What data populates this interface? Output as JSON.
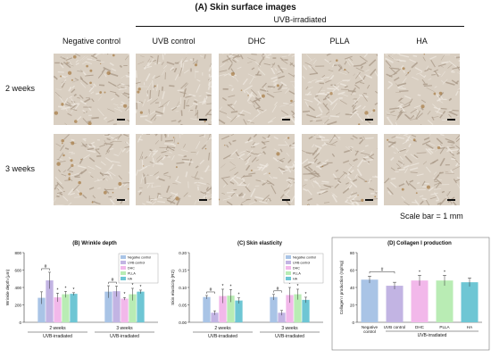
{
  "figure": {
    "title": "(A) Skin surface images",
    "group_header": "UVB-irradiated",
    "columns": [
      "Negative control",
      "UVB control",
      "DHC",
      "PLLA",
      "HA"
    ],
    "rows": [
      "2 weeks",
      "3 weeks"
    ],
    "scale_note": "Scale bar = 1 mm",
    "tile_colors": {
      "base": "#d9cfc2",
      "light": "#efe9e1",
      "dark": "#a89886",
      "brown": "#9c6a2c"
    }
  },
  "chart_data": [
    {
      "type": "bar",
      "title": "(B) Wrinkle depth",
      "ylabel": "Wrinkle depth (μm)",
      "ylim": [
        0,
        800
      ],
      "yticks": [
        0,
        200,
        400,
        600,
        800
      ],
      "groups": [
        "2 weeks",
        "3 weeks"
      ],
      "group_sublabel": "UVB-irradiated",
      "series": [
        {
          "name": "Negative control",
          "color": "#a9c4e6",
          "values": [
            280,
            350
          ],
          "errors": [
            70,
            70
          ]
        },
        {
          "name": "UVB control",
          "color": "#c2b4e3",
          "values": [
            480,
            355
          ],
          "errors": [
            95,
            60
          ]
        },
        {
          "name": "DHC",
          "color": "#f2b8ea",
          "values": [
            285,
            270
          ],
          "errors": [
            50,
            15
          ]
        },
        {
          "name": "PLLA",
          "color": "#b9ecb4",
          "values": [
            320,
            320
          ],
          "errors": [
            35,
            70
          ]
        },
        {
          "name": "HA",
          "color": "#6ec6d4",
          "values": [
            325,
            350
          ],
          "errors": [
            15,
            20
          ]
        }
      ],
      "significance": [
        {
          "group": 0,
          "label": "#"
        },
        {
          "group": 1,
          "label": "#"
        },
        {
          "group": 1,
          "label": "#"
        }
      ]
    },
    {
      "type": "bar",
      "title": "(C) Skin elasticity",
      "ylabel": "Skin elasticity (R2)",
      "ylim": [
        0,
        0.2
      ],
      "yticks": [
        0,
        0.05,
        0.1,
        0.15,
        0.2
      ],
      "yticklabels": [
        "0.00",
        "0.05",
        "0.10",
        "0.15",
        "0.20"
      ],
      "groups": [
        "2 weeks",
        "3 weeks"
      ],
      "group_sublabel": "UVB-irradiated",
      "series": [
        {
          "name": "Negative control",
          "color": "#a9c4e6",
          "values": [
            0.072,
            0.072
          ],
          "errors": [
            0.005,
            0.008
          ]
        },
        {
          "name": "UVB control",
          "color": "#c2b4e3",
          "values": [
            0.027,
            0.027
          ],
          "errors": [
            0.006,
            0.007
          ]
        },
        {
          "name": "DHC",
          "color": "#f2b8ea",
          "values": [
            0.075,
            0.078
          ],
          "errors": [
            0.02,
            0.022
          ]
        },
        {
          "name": "PLLA",
          "color": "#b9ecb4",
          "values": [
            0.076,
            0.08
          ],
          "errors": [
            0.018,
            0.015
          ]
        },
        {
          "name": "HA",
          "color": "#6ec6d4",
          "values": [
            0.062,
            0.064
          ],
          "errors": [
            0.008,
            0.008
          ]
        }
      ],
      "significance": [
        {
          "group": 0,
          "label": "#"
        },
        {
          "group": 1,
          "label": "#"
        }
      ]
    },
    {
      "type": "bar",
      "title": "(D) Collagen I production",
      "ylabel": "Collagen I production (ng/mg)",
      "ylim": [
        0,
        80
      ],
      "yticks": [
        0,
        20,
        40,
        60,
        80
      ],
      "categories": [
        "Negative control",
        "UVB control",
        "DHC",
        "PLLA",
        "HA"
      ],
      "group_sublabel": "UVB-irradiated",
      "series": [
        {
          "name": "Collagen I",
          "colors": [
            "#a9c4e6",
            "#c2b4e3",
            "#f2b8ea",
            "#b9ecb4",
            "#6ec6d4"
          ],
          "values": [
            49,
            42,
            48,
            48,
            46
          ],
          "errors": [
            4,
            4,
            6,
            6,
            5
          ]
        }
      ],
      "significance": [
        {
          "label": "#"
        }
      ]
    }
  ]
}
